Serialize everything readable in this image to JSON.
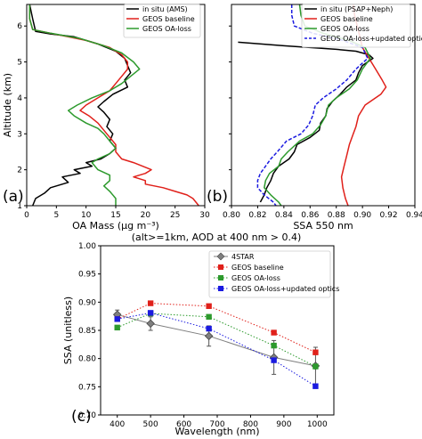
{
  "chart_data": [
    {
      "panel": "(a)",
      "type": "line",
      "xlabel": "OA Mass (µg m⁻³)",
      "ylabel": "Altitude (km)",
      "xlim": [
        0,
        30
      ],
      "ylim": [
        1,
        6.6
      ],
      "xticks": [
        "0",
        "5",
        "10",
        "15",
        "20",
        "25",
        "30"
      ],
      "yticks": [
        "1",
        "2",
        "3",
        "4",
        "5",
        "6"
      ],
      "legend": "top-right",
      "series": [
        {
          "name": "in situ (AMS)",
          "color": "#000000",
          "points": [
            [
              0.5,
              6.6
            ],
            [
              1,
              6.2
            ],
            [
              1.5,
              5.85
            ],
            [
              4,
              5.78
            ],
            [
              8,
              5.7
            ],
            [
              12,
              5.5
            ],
            [
              15,
              5.3
            ],
            [
              16.5,
              5.1
            ],
            [
              17,
              4.9
            ],
            [
              17.5,
              4.7
            ],
            [
              16.5,
              4.5
            ],
            [
              17,
              4.3
            ],
            [
              14.5,
              4.1
            ],
            [
              13,
              3.9
            ],
            [
              12,
              3.75
            ],
            [
              13,
              3.6
            ],
            [
              14,
              3.4
            ],
            [
              13.5,
              3.2
            ],
            [
              14.5,
              3.0
            ],
            [
              14,
              2.8
            ],
            [
              15,
              2.6
            ],
            [
              14,
              2.45
            ],
            [
              12.5,
              2.3
            ],
            [
              10,
              2.2
            ],
            [
              11,
              2.1
            ],
            [
              8,
              2.0
            ],
            [
              9,
              1.9
            ],
            [
              6,
              1.8
            ],
            [
              7,
              1.65
            ],
            [
              4,
              1.5
            ],
            [
              3,
              1.35
            ],
            [
              1.5,
              1.2
            ],
            [
              1,
              1.0
            ]
          ]
        },
        {
          "name": "GEOS baseline",
          "color": "#e0201a",
          "points": [
            [
              0.5,
              6.6
            ],
            [
              0.5,
              6.2
            ],
            [
              1,
              5.9
            ],
            [
              4,
              5.8
            ],
            [
              10,
              5.6
            ],
            [
              14,
              5.4
            ],
            [
              16,
              5.2
            ],
            [
              17,
              5.0
            ],
            [
              17,
              4.8
            ],
            [
              16,
              4.6
            ],
            [
              15,
              4.4
            ],
            [
              14,
              4.2
            ],
            [
              12,
              4.0
            ],
            [
              10,
              3.8
            ],
            [
              9,
              3.65
            ],
            [
              10.5,
              3.5
            ],
            [
              12,
              3.3
            ],
            [
              13,
              3.1
            ],
            [
              14,
              2.9
            ],
            [
              15,
              2.7
            ],
            [
              15,
              2.5
            ],
            [
              16,
              2.3
            ],
            [
              18,
              2.2
            ],
            [
              21,
              2.0
            ],
            [
              20,
              1.9
            ],
            [
              18,
              1.8
            ],
            [
              20,
              1.7
            ],
            [
              20,
              1.6
            ],
            [
              23,
              1.5
            ],
            [
              25,
              1.4
            ],
            [
              27,
              1.3
            ],
            [
              28,
              1.2
            ],
            [
              29,
              1.0
            ]
          ]
        },
        {
          "name": "GEOS OA-loss",
          "color": "#2d9a2d",
          "points": [
            [
              0.5,
              6.6
            ],
            [
              0.5,
              6.2
            ],
            [
              1,
              5.9
            ],
            [
              4,
              5.8
            ],
            [
              9,
              5.65
            ],
            [
              13,
              5.45
            ],
            [
              16,
              5.25
            ],
            [
              18,
              5.0
            ],
            [
              19,
              4.8
            ],
            [
              17.5,
              4.6
            ],
            [
              16,
              4.4
            ],
            [
              14,
              4.2
            ],
            [
              11,
              4.0
            ],
            [
              8.5,
              3.8
            ],
            [
              7,
              3.65
            ],
            [
              8,
              3.5
            ],
            [
              10,
              3.3
            ],
            [
              12,
              3.15
            ],
            [
              13,
              3.0
            ],
            [
              14,
              2.8
            ],
            [
              15,
              2.6
            ],
            [
              14,
              2.45
            ],
            [
              12,
              2.3
            ],
            [
              11,
              2.2
            ],
            [
              12,
              2.0
            ],
            [
              14,
              1.85
            ],
            [
              14,
              1.7
            ],
            [
              13,
              1.55
            ],
            [
              14,
              1.4
            ],
            [
              15,
              1.2
            ],
            [
              15,
              1.0
            ]
          ]
        }
      ]
    },
    {
      "panel": "(b)",
      "type": "line",
      "xlabel": "SSA 550 nm",
      "ylabel": "",
      "xlim": [
        0.8,
        0.94
      ],
      "ylim": [
        1,
        6.6
      ],
      "xticks": [
        "0.80",
        "0.82",
        "0.84",
        "0.86",
        "0.88",
        "0.90",
        "0.92",
        "0.94"
      ],
      "yticks": [
        "1",
        "2",
        "3",
        "4",
        "5",
        "6"
      ],
      "legend": "top-right",
      "series": [
        {
          "name": "in situ (PSAP+Neph)",
          "color": "#000000",
          "points": [
            [
              0.805,
              5.55
            ],
            [
              0.84,
              5.45
            ],
            [
              0.88,
              5.35
            ],
            [
              0.895,
              5.3
            ],
            [
              0.9,
              5.25
            ],
            [
              0.905,
              5.2
            ],
            [
              0.908,
              5.1
            ],
            [
              0.9,
              4.9
            ],
            [
              0.897,
              4.7
            ],
            [
              0.895,
              4.5
            ],
            [
              0.888,
              4.3
            ],
            [
              0.883,
              4.1
            ],
            [
              0.877,
              3.9
            ],
            [
              0.873,
              3.7
            ],
            [
              0.872,
              3.5
            ],
            [
              0.868,
              3.3
            ],
            [
              0.867,
              3.1
            ],
            [
              0.86,
              2.9
            ],
            [
              0.85,
              2.7
            ],
            [
              0.848,
              2.5
            ],
            [
              0.844,
              2.3
            ],
            [
              0.836,
              2.1
            ],
            [
              0.832,
              1.9
            ],
            [
              0.83,
              1.7
            ],
            [
              0.827,
              1.5
            ],
            [
              0.825,
              1.3
            ],
            [
              0.822,
              1.1
            ]
          ]
        },
        {
          "name": "GEOS baseline",
          "color": "#e0201a",
          "points": [
            [
              0.893,
              6.6
            ],
            [
              0.894,
              6.3
            ],
            [
              0.896,
              6.0
            ],
            [
              0.898,
              5.7
            ],
            [
              0.9,
              5.4
            ],
            [
              0.905,
              5.1
            ],
            [
              0.91,
              4.8
            ],
            [
              0.915,
              4.5
            ],
            [
              0.918,
              4.3
            ],
            [
              0.914,
              4.1
            ],
            [
              0.91,
              4.0
            ],
            [
              0.902,
              3.8
            ],
            [
              0.897,
              3.5
            ],
            [
              0.895,
              3.2
            ],
            [
              0.893,
              3.0
            ],
            [
              0.89,
              2.7
            ],
            [
              0.888,
              2.4
            ],
            [
              0.886,
              2.1
            ],
            [
              0.884,
              1.8
            ],
            [
              0.885,
              1.5
            ],
            [
              0.887,
              1.2
            ],
            [
              0.889,
              1.0
            ]
          ]
        },
        {
          "name": "GEOS OA-loss",
          "color": "#2d9a2d",
          "points": [
            [
              0.852,
              6.6
            ],
            [
              0.853,
              6.3
            ],
            [
              0.856,
              6.0
            ],
            [
              0.87,
              5.8
            ],
            [
              0.89,
              5.6
            ],
            [
              0.902,
              5.4
            ],
            [
              0.906,
              5.1
            ],
            [
              0.9,
              4.8
            ],
            [
              0.896,
              4.5
            ],
            [
              0.89,
              4.25
            ],
            [
              0.88,
              4.0
            ],
            [
              0.874,
              3.8
            ],
            [
              0.872,
              3.5
            ],
            [
              0.868,
              3.25
            ],
            [
              0.862,
              3.0
            ],
            [
              0.852,
              2.8
            ],
            [
              0.843,
              2.5
            ],
            [
              0.838,
              2.3
            ],
            [
              0.836,
              2.1
            ],
            [
              0.829,
              1.9
            ],
            [
              0.826,
              1.7
            ],
            [
              0.825,
              1.5
            ],
            [
              0.83,
              1.3
            ],
            [
              0.836,
              1.1
            ],
            [
              0.838,
              1.0
            ]
          ]
        },
        {
          "name": "GEOS OA-loss+updated optics",
          "color": "#1a1ae0",
          "dashed": true,
          "points": [
            [
              0.846,
              6.6
            ],
            [
              0.846,
              6.3
            ],
            [
              0.848,
              6.0
            ],
            [
              0.862,
              5.8
            ],
            [
              0.885,
              5.6
            ],
            [
              0.9,
              5.4
            ],
            [
              0.904,
              5.1
            ],
            [
              0.895,
              4.8
            ],
            [
              0.888,
              4.5
            ],
            [
              0.88,
              4.25
            ],
            [
              0.87,
              4.0
            ],
            [
              0.864,
              3.8
            ],
            [
              0.862,
              3.5
            ],
            [
              0.859,
              3.25
            ],
            [
              0.853,
              3.0
            ],
            [
              0.842,
              2.8
            ],
            [
              0.835,
              2.5
            ],
            [
              0.83,
              2.3
            ],
            [
              0.826,
              2.1
            ],
            [
              0.822,
              1.9
            ],
            [
              0.82,
              1.7
            ],
            [
              0.82,
              1.5
            ],
            [
              0.825,
              1.3
            ],
            [
              0.832,
              1.1
            ],
            [
              0.834,
              1.0
            ]
          ]
        }
      ]
    },
    {
      "panel": "(c)",
      "type": "line",
      "title": "(alt>=1km, AOD at 400 nm > 0.4)",
      "xlabel": "Wavelength (nm)",
      "ylabel": "SSA (unitless)",
      "xlim": [
        350,
        1050
      ],
      "ylim": [
        0.7,
        1.0
      ],
      "xticks": [
        "400",
        "500",
        "600",
        "700",
        "800",
        "900",
        "1000"
      ],
      "yticks": [
        "0.70",
        "0.75",
        "0.80",
        "0.85",
        "0.90",
        "0.95",
        "1.00"
      ],
      "legend": "top-right",
      "series": [
        {
          "name": "4STAR",
          "color": "#7f7f7f",
          "marker": "diamond",
          "solid": true,
          "x": [
            400,
            500,
            675,
            870,
            995
          ],
          "y": [
            0.878,
            0.862,
            0.84,
            0.802,
            0.787
          ],
          "err": [
            0.008,
            0.012,
            0.018,
            0.03,
            0.033
          ]
        },
        {
          "name": "GEOS baseline",
          "color": "#e0201a",
          "marker": "square",
          "x": [
            400,
            500,
            675,
            870,
            995
          ],
          "y": [
            0.87,
            0.898,
            0.893,
            0.846,
            0.811
          ]
        },
        {
          "name": "GEOS OA-loss",
          "color": "#2d9a2d",
          "marker": "square",
          "x": [
            400,
            500,
            675,
            870,
            995
          ],
          "y": [
            0.855,
            0.88,
            0.874,
            0.823,
            0.786
          ]
        },
        {
          "name": "GEOS OA-loss+updated optics",
          "color": "#1a1ae0",
          "marker": "square",
          "x": [
            400,
            500,
            675,
            870,
            995
          ],
          "y": [
            0.87,
            0.881,
            0.853,
            0.797,
            0.751
          ]
        }
      ]
    }
  ]
}
